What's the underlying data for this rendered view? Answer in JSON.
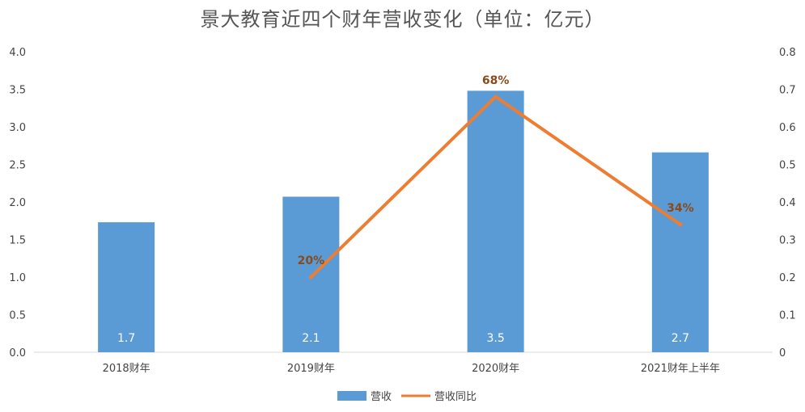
{
  "chart_data": {
    "type": "bar",
    "title": "景大教育近四个财年营收变化（单位：亿元）",
    "categories": [
      "2018财年",
      "2019财年",
      "2020财年",
      "2021财年上半年"
    ],
    "series": [
      {
        "name": "营收",
        "type": "bar",
        "axis": "left",
        "values": [
          1.73,
          2.07,
          3.48,
          2.66
        ],
        "labels": [
          "1.7",
          "2.1",
          "3.5",
          "2.7"
        ],
        "color": "#5b9bd5"
      },
      {
        "name": "营收同比",
        "type": "line",
        "axis": "right",
        "values": [
          null,
          0.2,
          0.68,
          0.34
        ],
        "labels": [
          "",
          "20%",
          "68%",
          "34%"
        ],
        "color": "#ed7d31"
      }
    ],
    "y_left": {
      "ylim": [
        0,
        4
      ],
      "ticks": [
        "0.0",
        "0.5",
        "1.0",
        "1.5",
        "2.0",
        "2.5",
        "3.0",
        "3.5",
        "4.0"
      ]
    },
    "y_right": {
      "ylim": [
        0,
        0.8
      ],
      "ticks": [
        "0",
        "0.1",
        "0.2",
        "0.3",
        "0.4",
        "0.5",
        "0.6",
        "0.7",
        "0.8"
      ]
    },
    "grid": false,
    "legend": "bottom"
  }
}
